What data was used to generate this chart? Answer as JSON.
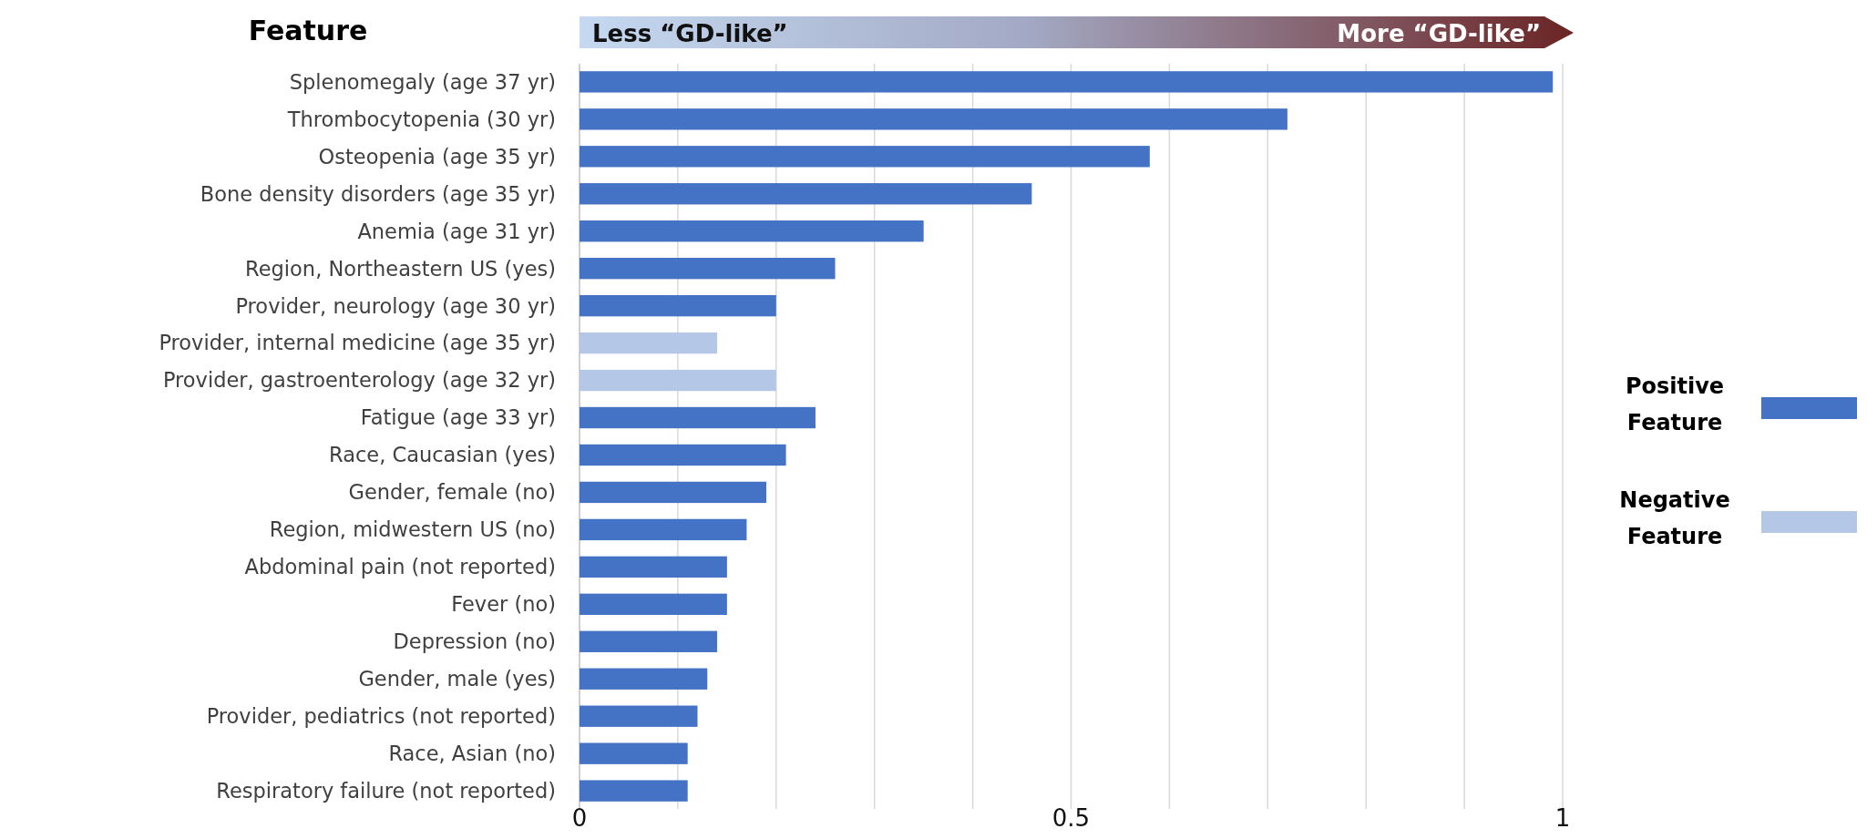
{
  "chart_data": {
    "type": "bar",
    "orientation": "horizontal",
    "ylabel": "Feature",
    "annotations": [
      "Less “GD-like”",
      "More “GD-like”"
    ],
    "categories": [
      "Splenomegaly (age 37 yr)",
      "Thrombocytopenia (30 yr)",
      "Osteopenia (age 35 yr)",
      "Bone density disorders (age 35 yr)",
      "Anemia (age 31 yr)",
      "Region, Northeastern US (yes)",
      "Provider, neurology (age 30 yr)",
      "Provider, internal medicine (age 35 yr)",
      "Provider, gastroenterology (age 32 yr)",
      "Fatigue (age 33 yr)",
      "Race, Caucasian (yes)",
      "Gender, female (no)",
      "Region, midwestern US (no)",
      "Abdominal pain (not reported)",
      "Fever (no)",
      "Depression (no)",
      "Gender, male (yes)",
      "Provider, pediatrics (not reported)",
      "Race, Asian (no)",
      "Respiratory failure (not reported)"
    ],
    "series": [
      {
        "name": "Positive Feature",
        "color": "#4472c4",
        "values": [
          0.99,
          0.72,
          0.58,
          0.46,
          0.35,
          0.26,
          0.2,
          null,
          null,
          0.24,
          0.21,
          0.19,
          0.17,
          0.15,
          0.15,
          0.14,
          0.13,
          0.12,
          0.11,
          0.11
        ]
      },
      {
        "name": "Negative Feature",
        "color": "#b4c7e7",
        "values": [
          null,
          null,
          null,
          null,
          null,
          null,
          null,
          0.14,
          0.2,
          null,
          null,
          null,
          null,
          null,
          null,
          null,
          null,
          null,
          null,
          null
        ]
      }
    ],
    "xlim": [
      0,
      1
    ],
    "xticks": [
      0,
      {
        "value": 0.1,
        "label": null
      },
      {
        "value": 0.2,
        "label": null
      },
      {
        "value": 0.3,
        "label": null
      },
      {
        "value": 0.4,
        "label": null
      },
      0.5,
      {
        "value": 0.6,
        "label": null
      },
      {
        "value": 0.7,
        "label": null
      },
      {
        "value": 0.8,
        "label": null
      },
      {
        "value": 0.9,
        "label": null
      },
      1
    ],
    "grid": "x",
    "legend": "right"
  }
}
